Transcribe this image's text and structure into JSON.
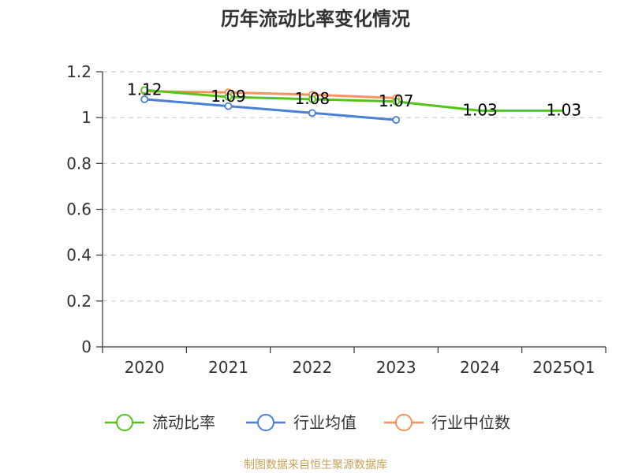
{
  "chart_data": {
    "type": "line",
    "title": "历年流动比率变化情况",
    "categories": [
      "2020",
      "2021",
      "2022",
      "2023",
      "2024",
      "2025Q1"
    ],
    "y_ticks": [
      "0",
      "0.2",
      "0.4",
      "0.6",
      "0.8",
      "1",
      "1.2"
    ],
    "ylim": [
      0,
      1.2
    ],
    "grid": true,
    "legend_position": "bottom",
    "series": [
      {
        "name": "流动比率",
        "color": "#52c41a",
        "values": [
          1.12,
          1.09,
          1.08,
          1.07,
          1.03,
          1.03
        ],
        "labels": [
          "1.12",
          "1.09",
          "1.08",
          "1.07",
          "1.03",
          "1.03"
        ],
        "show_markers": [
          true,
          true,
          true,
          true,
          false,
          false
        ]
      },
      {
        "name": "行业均值",
        "color": "#4a7fd6",
        "values": [
          1.08,
          1.05,
          1.02,
          0.99,
          null,
          null
        ],
        "labels": null,
        "show_markers": [
          true,
          true,
          true,
          true,
          false,
          false
        ]
      },
      {
        "name": "行业中位数",
        "color": "#f5935a",
        "values": [
          1.115,
          1.11,
          1.1,
          1.085,
          null,
          null
        ],
        "labels": null,
        "show_markers": [
          true,
          true,
          true,
          true,
          false,
          false
        ]
      }
    ],
    "source": "制图数据来自恒生聚源数据库"
  }
}
